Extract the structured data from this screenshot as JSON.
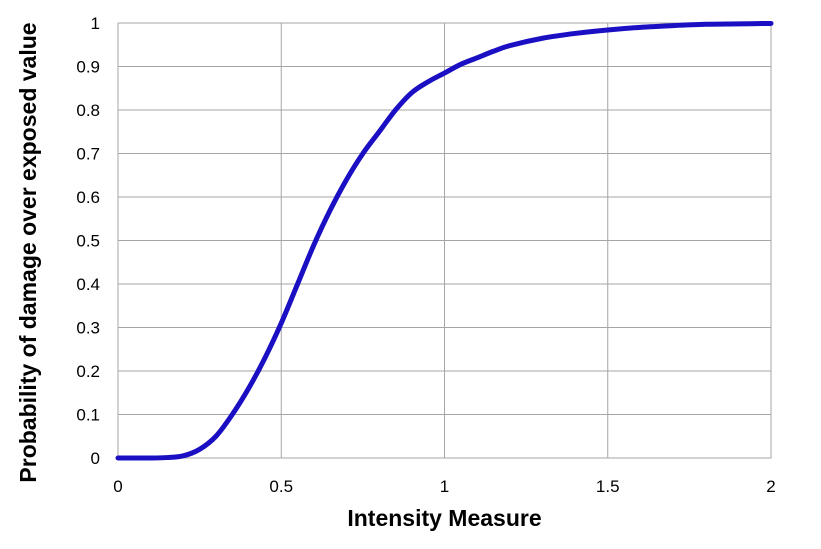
{
  "chart_data": {
    "type": "line",
    "title": "",
    "xlabel": "Intensity Measure",
    "ylabel": "Probability of damage over exposed value",
    "xlim": [
      0,
      2
    ],
    "ylim": [
      0,
      1
    ],
    "x_ticks": [
      "0",
      "0.5",
      "1",
      "1.5",
      "2"
    ],
    "y_ticks": [
      "0",
      "0.1",
      "0.2",
      "0.3",
      "0.4",
      "0.5",
      "0.6",
      "0.7",
      "0.8",
      "0.9",
      "1"
    ],
    "grid": true,
    "legend": "none",
    "series": [
      {
        "color": "#1a0fc2",
        "x": [
          0,
          0.1,
          0.15,
          0.2,
          0.25,
          0.3,
          0.35,
          0.4,
          0.45,
          0.5,
          0.55,
          0.6,
          0.65,
          0.7,
          0.75,
          0.8,
          0.85,
          0.9,
          0.95,
          1.0,
          1.05,
          1.1,
          1.15,
          1.2,
          1.3,
          1.4,
          1.5,
          1.6,
          1.7,
          1.8,
          1.9,
          2.0
        ],
        "y": [
          0,
          0,
          0.001,
          0.005,
          0.02,
          0.05,
          0.1,
          0.16,
          0.23,
          0.31,
          0.4,
          0.49,
          0.57,
          0.64,
          0.7,
          0.75,
          0.8,
          0.84,
          0.865,
          0.885,
          0.905,
          0.92,
          0.935,
          0.948,
          0.965,
          0.976,
          0.984,
          0.99,
          0.994,
          0.997,
          0.998,
          0.999
        ]
      }
    ]
  }
}
